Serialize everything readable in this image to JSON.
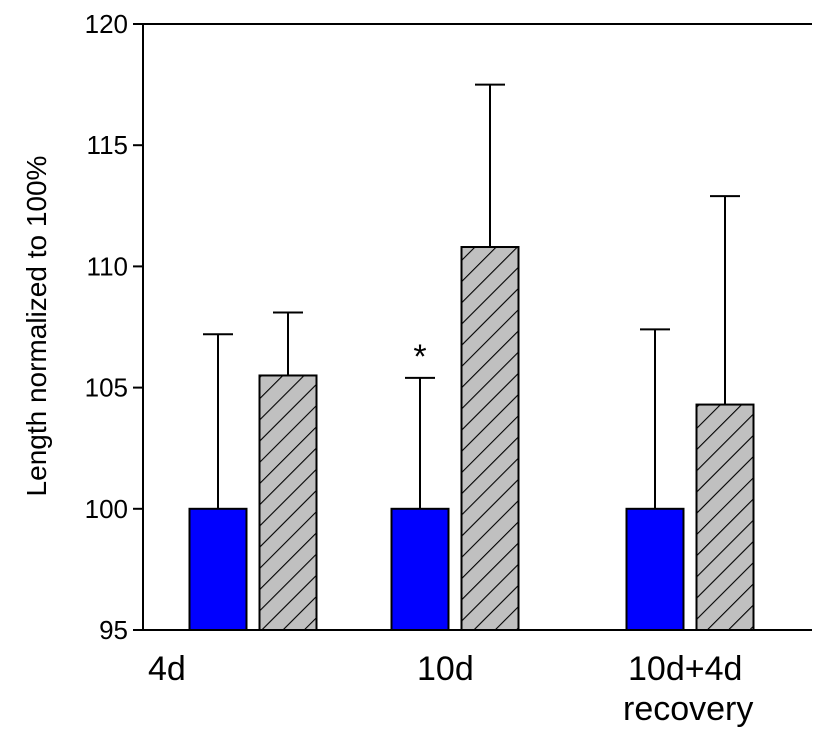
{
  "chart_data": {
    "type": "bar",
    "title": "",
    "xlabel": "",
    "ylabel": "Length normalized to 100%",
    "ylim": [
      95,
      120
    ],
    "yticks": [
      "95",
      "100",
      "105",
      "110",
      "115",
      "120"
    ],
    "categories": [
      {
        "line1": "4d",
        "line2": ""
      },
      {
        "line1": "10d",
        "line2": ""
      },
      {
        "line1": "10d+4d",
        "line2": "recovery"
      }
    ],
    "series": [
      {
        "style": "solid",
        "color": "#0000ff",
        "values": [
          100,
          100,
          100
        ],
        "error_upper": [
          107.2,
          105.4,
          107.4
        ]
      },
      {
        "style": "hatched",
        "color": "#c0c0c0",
        "values": [
          105.5,
          110.8,
          104.3
        ],
        "error_upper": [
          108.1,
          117.5,
          112.9
        ]
      }
    ],
    "annotations": [
      {
        "text": "*",
        "category_index": 1,
        "series_index": 0
      }
    ],
    "grid": false,
    "legend": "none"
  }
}
